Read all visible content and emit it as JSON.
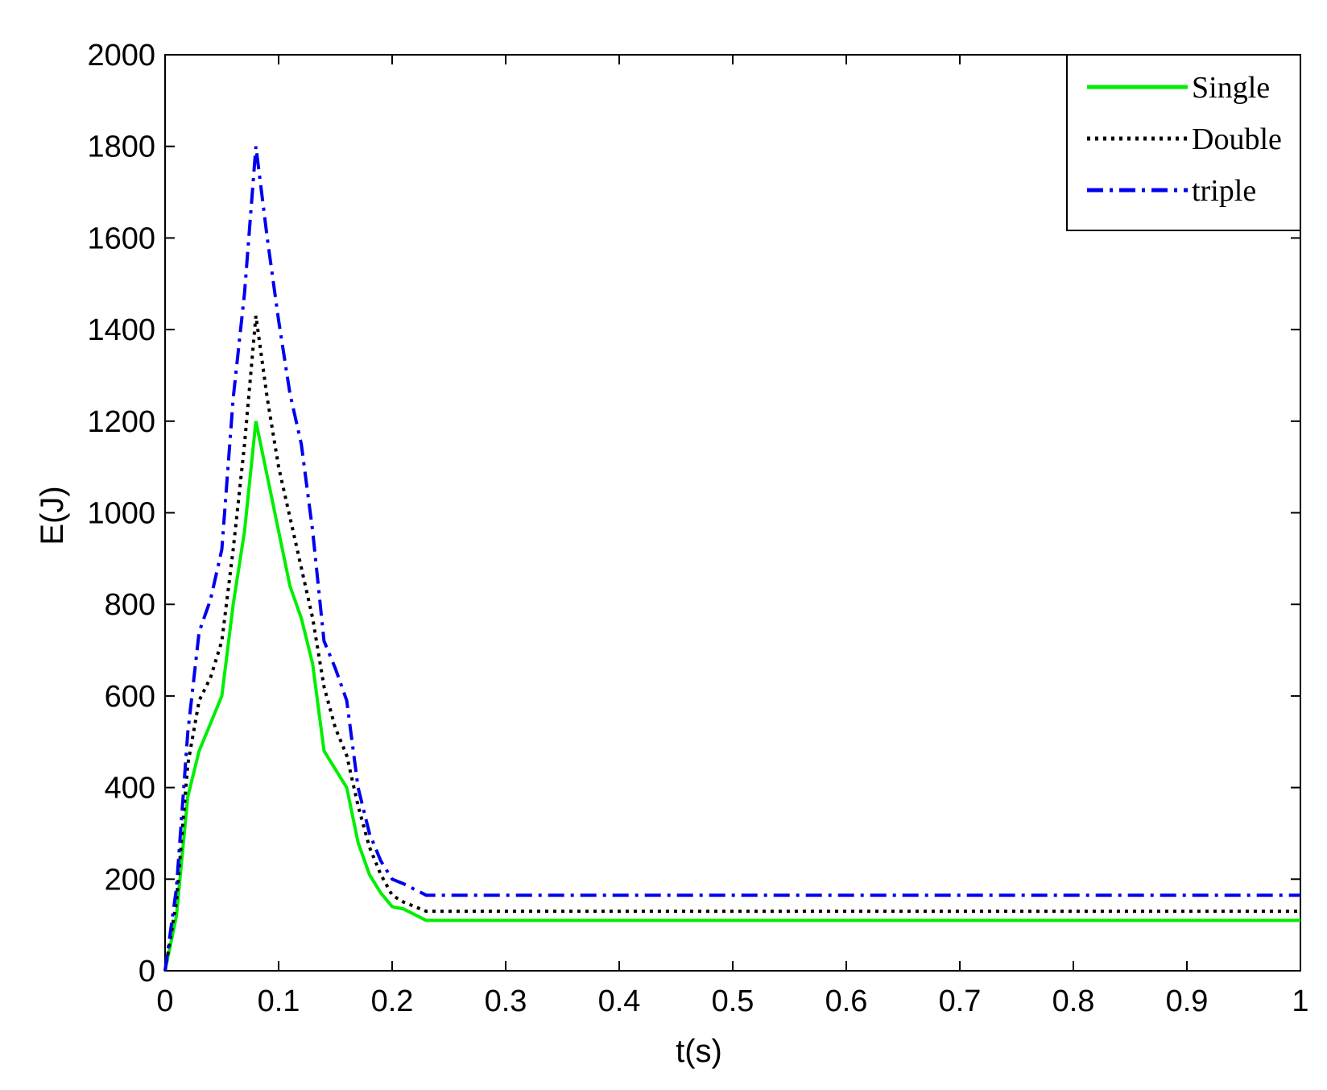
{
  "chart_data": {
    "type": "line",
    "title": "",
    "xlabel": "t(s)",
    "ylabel": "E(J)",
    "xlim": [
      0,
      1
    ],
    "ylim": [
      0,
      2000
    ],
    "xticks": [
      "0",
      "0.1",
      "0.2",
      "0.3",
      "0.4",
      "0.5",
      "0.6",
      "0.7",
      "0.8",
      "0.9",
      "1"
    ],
    "yticks": [
      "0",
      "200",
      "400",
      "600",
      "800",
      "1000",
      "1200",
      "1400",
      "1600",
      "1800",
      "2000"
    ],
    "grid": false,
    "legend_position": "top-right",
    "series": [
      {
        "name": "Single",
        "color": "#00ee00",
        "style": "solid",
        "points": [
          [
            0,
            0
          ],
          [
            0.01,
            120
          ],
          [
            0.02,
            380
          ],
          [
            0.03,
            480
          ],
          [
            0.04,
            540
          ],
          [
            0.05,
            600
          ],
          [
            0.06,
            800
          ],
          [
            0.07,
            960
          ],
          [
            0.08,
            1200
          ],
          [
            0.09,
            1080
          ],
          [
            0.1,
            960
          ],
          [
            0.11,
            840
          ],
          [
            0.12,
            770
          ],
          [
            0.13,
            670
          ],
          [
            0.14,
            480
          ],
          [
            0.15,
            440
          ],
          [
            0.16,
            400
          ],
          [
            0.17,
            280
          ],
          [
            0.18,
            210
          ],
          [
            0.19,
            170
          ],
          [
            0.2,
            140
          ],
          [
            0.21,
            135
          ],
          [
            0.23,
            110
          ],
          [
            1,
            110
          ]
        ]
      },
      {
        "name": "Double",
        "color": "#000000",
        "style": "dotted",
        "points": [
          [
            0,
            0
          ],
          [
            0.01,
            150
          ],
          [
            0.02,
            450
          ],
          [
            0.03,
            590
          ],
          [
            0.04,
            640
          ],
          [
            0.05,
            720
          ],
          [
            0.06,
            920
          ],
          [
            0.07,
            1150
          ],
          [
            0.08,
            1430
          ],
          [
            0.09,
            1250
          ],
          [
            0.1,
            1100
          ],
          [
            0.11,
            990
          ],
          [
            0.12,
            880
          ],
          [
            0.13,
            770
          ],
          [
            0.14,
            620
          ],
          [
            0.15,
            530
          ],
          [
            0.16,
            470
          ],
          [
            0.17,
            360
          ],
          [
            0.18,
            270
          ],
          [
            0.19,
            210
          ],
          [
            0.2,
            165
          ],
          [
            0.21,
            150
          ],
          [
            0.23,
            130
          ],
          [
            1,
            130
          ]
        ]
      },
      {
        "name": "triple",
        "color": "#0000ee",
        "style": "dashdot",
        "points": [
          [
            0,
            0
          ],
          [
            0.01,
            180
          ],
          [
            0.02,
            520
          ],
          [
            0.03,
            740
          ],
          [
            0.04,
            810
          ],
          [
            0.05,
            920
          ],
          [
            0.06,
            1250
          ],
          [
            0.07,
            1480
          ],
          [
            0.08,
            1800
          ],
          [
            0.09,
            1600
          ],
          [
            0.1,
            1420
          ],
          [
            0.11,
            1260
          ],
          [
            0.12,
            1150
          ],
          [
            0.13,
            960
          ],
          [
            0.14,
            720
          ],
          [
            0.15,
            660
          ],
          [
            0.16,
            590
          ],
          [
            0.17,
            400
          ],
          [
            0.18,
            300
          ],
          [
            0.19,
            240
          ],
          [
            0.2,
            200
          ],
          [
            0.21,
            190
          ],
          [
            0.23,
            165
          ],
          [
            1,
            165
          ]
        ]
      }
    ]
  }
}
